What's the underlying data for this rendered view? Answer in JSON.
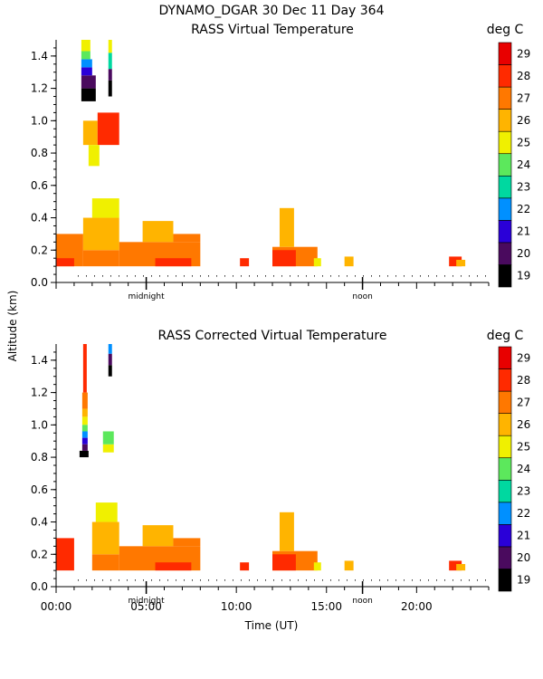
{
  "chart_data": {
    "type": "heatmap",
    "title": "DYNAMO_DGAR  30 Dec 11 Day 364",
    "xlabel": "Time (UT)",
    "ylabel": "Altitude (km)",
    "xlim": [
      0,
      24
    ],
    "ylim": [
      0,
      1.5
    ],
    "x_ticks": [
      {
        "value": 0,
        "label": "00:00"
      },
      {
        "value": 5,
        "label": "05:00"
      },
      {
        "value": 10,
        "label": "10:00"
      },
      {
        "value": 15,
        "label": "15:00"
      },
      {
        "value": 20,
        "label": "20:00"
      }
    ],
    "y_ticks": [
      {
        "value": 0.0,
        "label": "0.0"
      },
      {
        "value": 0.2,
        "label": "0.2"
      },
      {
        "value": 0.4,
        "label": "0.4"
      },
      {
        "value": 0.6,
        "label": "0.6"
      },
      {
        "value": 0.8,
        "label": "0.8"
      },
      {
        "value": 1.0,
        "label": "1.0"
      },
      {
        "value": 1.2,
        "label": "1.2"
      },
      {
        "value": 1.4,
        "label": "1.4"
      }
    ],
    "markers": [
      {
        "label": "midnight",
        "x": 5
      },
      {
        "label": "noon",
        "x": 17
      }
    ],
    "colorbar": {
      "unit": "deg C",
      "levels": [
        19,
        20,
        21,
        22,
        23,
        24,
        25,
        26,
        27,
        28,
        29
      ],
      "colors": [
        "#000000",
        "#4a0a5e",
        "#2a00d8",
        "#0090ff",
        "#00d8a0",
        "#5ce85c",
        "#f0f000",
        "#ffb400",
        "#ff7800",
        "#ff2a00",
        "#e80000"
      ]
    },
    "panels": [
      {
        "title": "RASS Virtual Temperature",
        "cells": [
          {
            "t0": 1.4,
            "t1": 2.2,
            "a0": 1.12,
            "a1": 1.2,
            "v": 19
          },
          {
            "t0": 1.4,
            "t1": 2.2,
            "a0": 1.2,
            "a1": 1.28,
            "v": 20
          },
          {
            "t0": 1.4,
            "t1": 2.0,
            "a0": 1.28,
            "a1": 1.33,
            "v": 21
          },
          {
            "t0": 1.4,
            "t1": 2.0,
            "a0": 1.33,
            "a1": 1.38,
            "v": 22
          },
          {
            "t0": 1.4,
            "t1": 1.9,
            "a0": 1.38,
            "a1": 1.43,
            "v": 24
          },
          {
            "t0": 1.4,
            "t1": 1.9,
            "a0": 1.43,
            "a1": 1.5,
            "v": 25
          },
          {
            "t0": 2.9,
            "t1": 3.1,
            "a0": 1.15,
            "a1": 1.25,
            "v": 19
          },
          {
            "t0": 2.9,
            "t1": 3.1,
            "a0": 1.25,
            "a1": 1.32,
            "v": 20
          },
          {
            "t0": 2.9,
            "t1": 3.1,
            "a0": 1.32,
            "a1": 1.42,
            "v": 23
          },
          {
            "t0": 2.9,
            "t1": 3.1,
            "a0": 1.42,
            "a1": 1.5,
            "v": 25
          },
          {
            "t0": 1.5,
            "t1": 2.3,
            "a0": 0.85,
            "a1": 1.0,
            "v": 26
          },
          {
            "t0": 2.3,
            "t1": 3.5,
            "a0": 0.85,
            "a1": 1.05,
            "v": 28
          },
          {
            "t0": 1.8,
            "t1": 2.4,
            "a0": 0.72,
            "a1": 0.85,
            "v": 25
          },
          {
            "t0": 0.0,
            "t1": 1.5,
            "a0": 0.1,
            "a1": 0.3,
            "v": 27
          },
          {
            "t0": 1.5,
            "t1": 3.5,
            "a0": 0.1,
            "a1": 0.2,
            "v": 27
          },
          {
            "t0": 1.5,
            "t1": 3.5,
            "a0": 0.2,
            "a1": 0.4,
            "v": 26
          },
          {
            "t0": 2.0,
            "t1": 3.5,
            "a0": 0.4,
            "a1": 0.52,
            "v": 25
          },
          {
            "t0": 0.0,
            "t1": 1.0,
            "a0": 0.1,
            "a1": 0.15,
            "v": 28
          },
          {
            "t0": 3.5,
            "t1": 8.0,
            "a0": 0.1,
            "a1": 0.25,
            "v": 27
          },
          {
            "t0": 4.8,
            "t1": 6.5,
            "a0": 0.25,
            "a1": 0.38,
            "v": 26
          },
          {
            "t0": 6.5,
            "t1": 8.0,
            "a0": 0.25,
            "a1": 0.3,
            "v": 27
          },
          {
            "t0": 5.5,
            "t1": 7.5,
            "a0": 0.1,
            "a1": 0.15,
            "v": 28
          },
          {
            "t0": 10.2,
            "t1": 10.7,
            "a0": 0.1,
            "a1": 0.15,
            "v": 28
          },
          {
            "t0": 12.0,
            "t1": 14.5,
            "a0": 0.1,
            "a1": 0.22,
            "v": 27
          },
          {
            "t0": 12.0,
            "t1": 13.3,
            "a0": 0.1,
            "a1": 0.2,
            "v": 28
          },
          {
            "t0": 12.4,
            "t1": 13.2,
            "a0": 0.22,
            "a1": 0.46,
            "v": 26
          },
          {
            "t0": 14.3,
            "t1": 14.7,
            "a0": 0.1,
            "a1": 0.15,
            "v": 25
          },
          {
            "t0": 16.0,
            "t1": 16.5,
            "a0": 0.1,
            "a1": 0.16,
            "v": 26
          },
          {
            "t0": 21.8,
            "t1": 22.5,
            "a0": 0.1,
            "a1": 0.16,
            "v": 28
          },
          {
            "t0": 22.2,
            "t1": 22.7,
            "a0": 0.1,
            "a1": 0.14,
            "v": 26
          }
        ]
      },
      {
        "title": "RASS Corrected Virtual Temperature",
        "cells": [
          {
            "t0": 1.5,
            "t1": 1.7,
            "a0": 1.2,
            "a1": 1.5,
            "v": 28
          },
          {
            "t0": 1.45,
            "t1": 1.75,
            "a0": 1.1,
            "a1": 1.2,
            "v": 27
          },
          {
            "t0": 1.45,
            "t1": 1.75,
            "a0": 1.05,
            "a1": 1.1,
            "v": 26
          },
          {
            "t0": 1.45,
            "t1": 1.75,
            "a0": 1.0,
            "a1": 1.05,
            "v": 25
          },
          {
            "t0": 1.45,
            "t1": 1.75,
            "a0": 0.96,
            "a1": 1.0,
            "v": 24
          },
          {
            "t0": 1.45,
            "t1": 1.75,
            "a0": 0.92,
            "a1": 0.96,
            "v": 22
          },
          {
            "t0": 1.45,
            "t1": 1.75,
            "a0": 0.88,
            "a1": 0.92,
            "v": 21
          },
          {
            "t0": 1.45,
            "t1": 1.75,
            "a0": 0.84,
            "a1": 0.88,
            "v": 20
          },
          {
            "t0": 1.3,
            "t1": 1.8,
            "a0": 0.8,
            "a1": 0.84,
            "v": 19
          },
          {
            "t0": 2.9,
            "t1": 3.1,
            "a0": 1.3,
            "a1": 1.37,
            "v": 19
          },
          {
            "t0": 2.9,
            "t1": 3.1,
            "a0": 1.37,
            "a1": 1.44,
            "v": 20
          },
          {
            "t0": 2.9,
            "t1": 3.1,
            "a0": 1.44,
            "a1": 1.5,
            "v": 22
          },
          {
            "t0": 2.6,
            "t1": 3.2,
            "a0": 0.83,
            "a1": 0.88,
            "v": 25
          },
          {
            "t0": 2.6,
            "t1": 3.2,
            "a0": 0.88,
            "a1": 0.96,
            "v": 24
          },
          {
            "t0": 0.0,
            "t1": 1.0,
            "a0": 0.1,
            "a1": 0.3,
            "v": 28
          },
          {
            "t0": 2.0,
            "t1": 3.5,
            "a0": 0.1,
            "a1": 0.2,
            "v": 27
          },
          {
            "t0": 2.0,
            "t1": 3.5,
            "a0": 0.2,
            "a1": 0.4,
            "v": 26
          },
          {
            "t0": 2.2,
            "t1": 3.4,
            "a0": 0.4,
            "a1": 0.52,
            "v": 25
          },
          {
            "t0": 3.5,
            "t1": 8.0,
            "a0": 0.1,
            "a1": 0.25,
            "v": 27
          },
          {
            "t0": 4.8,
            "t1": 6.5,
            "a0": 0.25,
            "a1": 0.38,
            "v": 26
          },
          {
            "t0": 6.5,
            "t1": 8.0,
            "a0": 0.25,
            "a1": 0.3,
            "v": 27
          },
          {
            "t0": 5.5,
            "t1": 7.5,
            "a0": 0.1,
            "a1": 0.15,
            "v": 28
          },
          {
            "t0": 10.2,
            "t1": 10.7,
            "a0": 0.1,
            "a1": 0.15,
            "v": 28
          },
          {
            "t0": 12.0,
            "t1": 14.5,
            "a0": 0.1,
            "a1": 0.22,
            "v": 27
          },
          {
            "t0": 12.0,
            "t1": 13.3,
            "a0": 0.1,
            "a1": 0.2,
            "v": 28
          },
          {
            "t0": 12.4,
            "t1": 13.2,
            "a0": 0.22,
            "a1": 0.46,
            "v": 26
          },
          {
            "t0": 14.3,
            "t1": 14.7,
            "a0": 0.1,
            "a1": 0.15,
            "v": 25
          },
          {
            "t0": 16.0,
            "t1": 16.5,
            "a0": 0.1,
            "a1": 0.16,
            "v": 26
          },
          {
            "t0": 21.8,
            "t1": 22.5,
            "a0": 0.1,
            "a1": 0.16,
            "v": 28
          },
          {
            "t0": 22.2,
            "t1": 22.7,
            "a0": 0.1,
            "a1": 0.14,
            "v": 26
          }
        ]
      }
    ]
  }
}
